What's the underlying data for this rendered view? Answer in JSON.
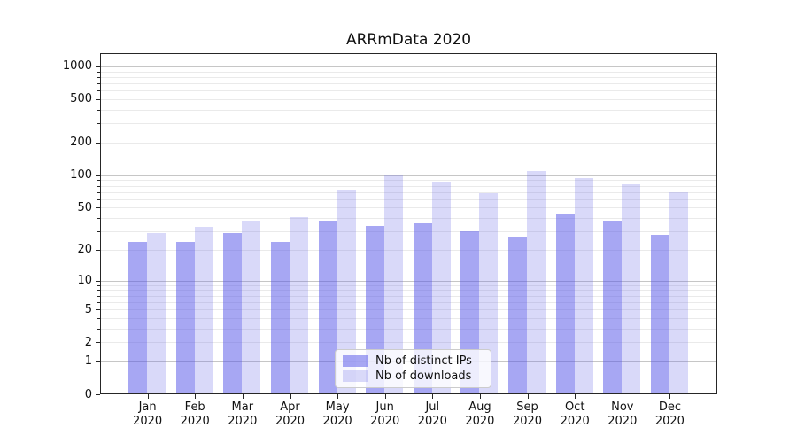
{
  "chart_data": {
    "type": "bar",
    "title": "ARRmData 2020",
    "categories": [
      "Jan 2020",
      "Feb 2020",
      "Mar 2020",
      "Apr 2020",
      "May 2020",
      "Jun 2020",
      "Jul 2020",
      "Aug 2020",
      "Sep 2020",
      "Oct 2020",
      "Nov 2020",
      "Dec 2020"
    ],
    "series": [
      {
        "name": "Nb of distinct IPs",
        "values": [
          24,
          24,
          29,
          24,
          38,
          34,
          36,
          30,
          26,
          44,
          38,
          28
        ],
        "color": "rgba(80,80,232,0.5)"
      },
      {
        "name": "Nb of downloads",
        "values": [
          29,
          33,
          37,
          41,
          72,
          100,
          88,
          68,
          110,
          95,
          83,
          70
        ],
        "color": "rgba(104,104,232,0.25)"
      }
    ],
    "xlabel": "",
    "ylabel": "",
    "yscale": "log1p",
    "ylim": [
      0,
      1320
    ],
    "yticks": [
      0,
      1,
      2,
      5,
      10,
      20,
      50,
      100,
      200,
      500,
      1000
    ],
    "ytick_labels": [
      "0",
      "1",
      "2",
      "5",
      "10",
      "20",
      "50",
      "100",
      "200",
      "500",
      "1000"
    ],
    "grid": "major-and-minor horizontal",
    "legend_position": "lower-center"
  },
  "style": {
    "bar_ips_color": "rgba(80,80,232,0.5)",
    "bar_downloads_color": "rgba(104,104,232,0.25)",
    "grid_major_color": "#c6c6c6",
    "grid_minor_color": "#eaeaea",
    "spine_color": "#262626",
    "text_color": "#111111",
    "legend_bg": "rgba(255,255,255,0.8)",
    "legend_border_color": "#cccccc"
  }
}
